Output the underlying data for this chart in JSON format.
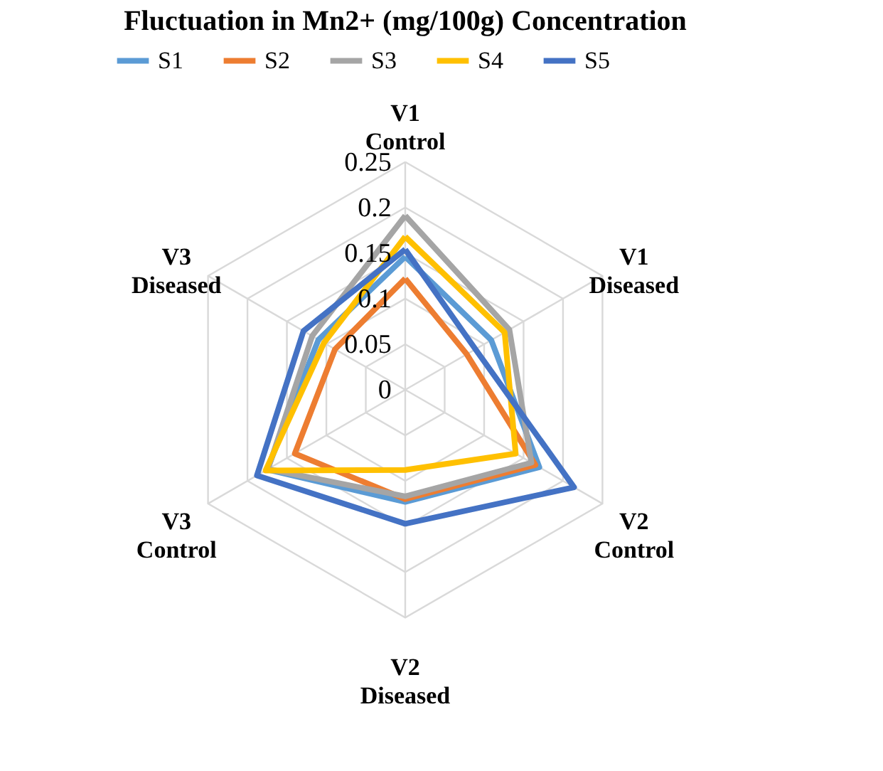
{
  "chart_data": {
    "type": "radar",
    "title": "Fluctuation in Mn2+ (mg/100g) Concentration",
    "categories": [
      "V1 Control",
      "V1 Diseased",
      "V2 Control",
      "V2 Diseased",
      "V3 Control",
      "V3 Diseased"
    ],
    "series": [
      {
        "name": "S1",
        "color": "#5b9bd5",
        "values": [
          0.146,
          0.109,
          0.17,
          0.123,
          0.175,
          0.11
        ]
      },
      {
        "name": "S2",
        "color": "#ed7d31",
        "values": [
          0.122,
          0.078,
          0.165,
          0.12,
          0.14,
          0.089
        ]
      },
      {
        "name": "S3",
        "color": "#a5a5a5",
        "values": [
          0.191,
          0.132,
          0.16,
          0.117,
          0.174,
          0.118
        ]
      },
      {
        "name": "S4",
        "color": "#ffc000",
        "values": [
          0.168,
          0.126,
          0.14,
          0.088,
          0.177,
          0.103
        ]
      },
      {
        "name": "S5",
        "color": "#4472c4",
        "values": [
          0.154,
          0.089,
          0.214,
          0.147,
          0.188,
          0.129
        ]
      }
    ],
    "ylim": [
      0,
      0.25
    ],
    "yticks": [
      0,
      0.05,
      0.1,
      0.15,
      0.2,
      0.25
    ],
    "grid": true,
    "legend": "top",
    "line_style": "solid",
    "marker": "none"
  }
}
